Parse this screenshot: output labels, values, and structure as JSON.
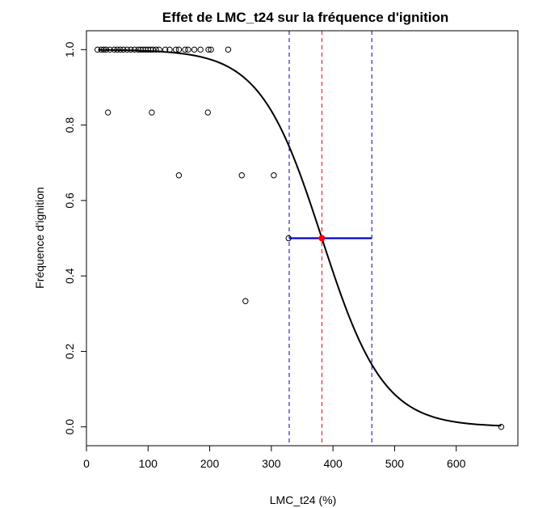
{
  "chart_data": {
    "type": "scatter",
    "title": "Effet de LMC_t24 sur la fréquence d'ignition",
    "xlabel": "LMC_t24 (%)",
    "ylabel": "Fréquence d'ignition",
    "xlim": [
      0,
      700
    ],
    "ylim": [
      -0.05,
      1.05
    ],
    "xticks": [
      0,
      100,
      200,
      300,
      400,
      500,
      600
    ],
    "yticks": [
      0.0,
      0.2,
      0.4,
      0.6,
      0.8,
      1.0
    ],
    "grid": false,
    "colors": {
      "points": "#000000",
      "fit": "#000000",
      "ci": "#0000cc",
      "estimate": "#ff0000"
    },
    "observations": [
      {
        "x": 18,
        "y": 1.0
      },
      {
        "x": 24,
        "y": 1.0
      },
      {
        "x": 28,
        "y": 1.0
      },
      {
        "x": 32,
        "y": 1.0
      },
      {
        "x": 38,
        "y": 1.0
      },
      {
        "x": 45,
        "y": 1.0
      },
      {
        "x": 50,
        "y": 1.0
      },
      {
        "x": 55,
        "y": 1.0
      },
      {
        "x": 60,
        "y": 1.0
      },
      {
        "x": 66,
        "y": 1.0
      },
      {
        "x": 72,
        "y": 1.0
      },
      {
        "x": 78,
        "y": 1.0
      },
      {
        "x": 84,
        "y": 1.0
      },
      {
        "x": 88,
        "y": 1.0
      },
      {
        "x": 92,
        "y": 1.0
      },
      {
        "x": 96,
        "y": 1.0
      },
      {
        "x": 100,
        "y": 1.0
      },
      {
        "x": 104,
        "y": 1.0
      },
      {
        "x": 108,
        "y": 1.0
      },
      {
        "x": 113,
        "y": 1.0
      },
      {
        "x": 118,
        "y": 1.0
      },
      {
        "x": 128,
        "y": 1.0
      },
      {
        "x": 135,
        "y": 1.0
      },
      {
        "x": 145,
        "y": 1.0
      },
      {
        "x": 150,
        "y": 1.0
      },
      {
        "x": 160,
        "y": 1.0
      },
      {
        "x": 165,
        "y": 1.0
      },
      {
        "x": 175,
        "y": 1.0
      },
      {
        "x": 185,
        "y": 1.0
      },
      {
        "x": 198,
        "y": 1.0
      },
      {
        "x": 202,
        "y": 1.0
      },
      {
        "x": 230,
        "y": 1.0
      },
      {
        "x": 35,
        "y": 0.8333
      },
      {
        "x": 106,
        "y": 0.8333
      },
      {
        "x": 197,
        "y": 0.8333
      },
      {
        "x": 150,
        "y": 0.6667
      },
      {
        "x": 252,
        "y": 0.6667
      },
      {
        "x": 304,
        "y": 0.6667
      },
      {
        "x": 328,
        "y": 0.5
      },
      {
        "x": 258,
        "y": 0.3333
      },
      {
        "x": 673,
        "y": 0.0
      }
    ],
    "logistic_fit": {
      "midpoint": 382,
      "scale": 50,
      "x_range": [
        20,
        673
      ]
    },
    "estimate": {
      "x": 382,
      "y": 0.5
    },
    "ci": {
      "lower": 329,
      "upper": 463
    }
  }
}
